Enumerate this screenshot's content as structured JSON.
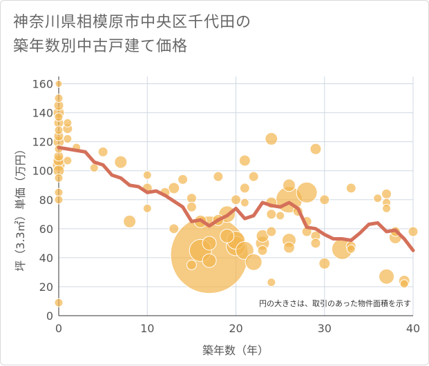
{
  "title_line1": "神奈川県相模原市中央区千代田の",
  "title_line2": "築年数別中古戸建て価格",
  "chart_data": {
    "type": "scatter",
    "xlabel": "築年数（年）",
    "ylabel": "坪（3.3㎡）単価（万円）",
    "xlim": [
      0,
      40
    ],
    "ylim": [
      0,
      165
    ],
    "x_ticks": [
      "0",
      "10",
      "20",
      "30",
      "40"
    ],
    "y_ticks": [
      "0",
      "20",
      "40",
      "60",
      "80",
      "100",
      "120",
      "140",
      "160"
    ],
    "grid": true,
    "annotation": "円の大きさは、取引のあった物件面積を示す",
    "colors": {
      "bubble": "#f2b54f",
      "line": "#d4705a",
      "grid": "#cfd8e3"
    },
    "bubbles": [
      {
        "x": 0,
        "y": 160,
        "s": 5
      },
      {
        "x": 0,
        "y": 150,
        "s": 6
      },
      {
        "x": 0,
        "y": 145,
        "s": 7
      },
      {
        "x": 0,
        "y": 140,
        "s": 8
      },
      {
        "x": 0,
        "y": 137,
        "s": 6
      },
      {
        "x": 0,
        "y": 133,
        "s": 7
      },
      {
        "x": 0,
        "y": 128,
        "s": 6
      },
      {
        "x": 0,
        "y": 124,
        "s": 7
      },
      {
        "x": 0,
        "y": 120,
        "s": 8
      },
      {
        "x": 0,
        "y": 115,
        "s": 6
      },
      {
        "x": 0,
        "y": 110,
        "s": 7
      },
      {
        "x": 0,
        "y": 107,
        "s": 8
      },
      {
        "x": 0,
        "y": 104,
        "s": 9
      },
      {
        "x": 0,
        "y": 100,
        "s": 8
      },
      {
        "x": 0,
        "y": 95,
        "s": 6
      },
      {
        "x": 0,
        "y": 85,
        "s": 6
      },
      {
        "x": 0,
        "y": 80,
        "s": 6
      },
      {
        "x": 0,
        "y": 9,
        "s": 6
      },
      {
        "x": 1,
        "y": 133,
        "s": 6
      },
      {
        "x": 1,
        "y": 129,
        "s": 7
      },
      {
        "x": 1,
        "y": 122,
        "s": 6
      },
      {
        "x": 1,
        "y": 107,
        "s": 6
      },
      {
        "x": 2,
        "y": 116,
        "s": 6
      },
      {
        "x": 4,
        "y": 102,
        "s": 6
      },
      {
        "x": 5,
        "y": 113,
        "s": 7
      },
      {
        "x": 7,
        "y": 106,
        "s": 9
      },
      {
        "x": 8,
        "y": 65,
        "s": 9
      },
      {
        "x": 10,
        "y": 97,
        "s": 6
      },
      {
        "x": 10,
        "y": 88,
        "s": 7
      },
      {
        "x": 10,
        "y": 74,
        "s": 6
      },
      {
        "x": 12,
        "y": 85,
        "s": 7
      },
      {
        "x": 13,
        "y": 88,
        "s": 8
      },
      {
        "x": 13,
        "y": 60,
        "s": 7
      },
      {
        "x": 14,
        "y": 94,
        "s": 7
      },
      {
        "x": 15,
        "y": 81,
        "s": 7
      },
      {
        "x": 15,
        "y": 75,
        "s": 7
      },
      {
        "x": 15,
        "y": 35,
        "s": 7
      },
      {
        "x": 16,
        "y": 65,
        "s": 9
      },
      {
        "x": 16,
        "y": 45,
        "s": 16
      },
      {
        "x": 17,
        "y": 42,
        "s": 56
      },
      {
        "x": 17,
        "y": 50,
        "s": 10
      },
      {
        "x": 17,
        "y": 38,
        "s": 10
      },
      {
        "x": 18,
        "y": 96,
        "s": 7
      },
      {
        "x": 18,
        "y": 66,
        "s": 8
      },
      {
        "x": 19,
        "y": 70,
        "s": 12
      },
      {
        "x": 19,
        "y": 55,
        "s": 10
      },
      {
        "x": 20,
        "y": 80,
        "s": 7
      },
      {
        "x": 20,
        "y": 52,
        "s": 13
      },
      {
        "x": 20,
        "y": 48,
        "s": 14
      },
      {
        "x": 21,
        "y": 107,
        "s": 8
      },
      {
        "x": 21,
        "y": 88,
        "s": 7
      },
      {
        "x": 21,
        "y": 78,
        "s": 6
      },
      {
        "x": 21,
        "y": 45,
        "s": 13
      },
      {
        "x": 22,
        "y": 96,
        "s": 7
      },
      {
        "x": 22,
        "y": 37,
        "s": 12
      },
      {
        "x": 23,
        "y": 55,
        "s": 9
      },
      {
        "x": 23,
        "y": 50,
        "s": 10
      },
      {
        "x": 23,
        "y": 45,
        "s": 7
      },
      {
        "x": 24,
        "y": 122,
        "s": 9
      },
      {
        "x": 24,
        "y": 78,
        "s": 8
      },
      {
        "x": 24,
        "y": 70,
        "s": 7
      },
      {
        "x": 24,
        "y": 58,
        "s": 7
      },
      {
        "x": 24,
        "y": 23,
        "s": 6
      },
      {
        "x": 25,
        "y": 69,
        "s": 6
      },
      {
        "x": 26,
        "y": 90,
        "s": 9
      },
      {
        "x": 26,
        "y": 80,
        "s": 19
      },
      {
        "x": 26,
        "y": 52,
        "s": 10
      },
      {
        "x": 26,
        "y": 47,
        "s": 8
      },
      {
        "x": 27,
        "y": 72,
        "s": 7
      },
      {
        "x": 28,
        "y": 85,
        "s": 15
      },
      {
        "x": 28,
        "y": 65,
        "s": 7
      },
      {
        "x": 28,
        "y": 58,
        "s": 7
      },
      {
        "x": 29,
        "y": 115,
        "s": 8
      },
      {
        "x": 29,
        "y": 55,
        "s": 7
      },
      {
        "x": 29,
        "y": 50,
        "s": 7
      },
      {
        "x": 30,
        "y": 80,
        "s": 7
      },
      {
        "x": 30,
        "y": 36,
        "s": 8
      },
      {
        "x": 32,
        "y": 46,
        "s": 15
      },
      {
        "x": 33,
        "y": 88,
        "s": 7
      },
      {
        "x": 33,
        "y": 48,
        "s": 7
      },
      {
        "x": 33,
        "y": 46,
        "s": 6
      },
      {
        "x": 36,
        "y": 81,
        "s": 6
      },
      {
        "x": 37,
        "y": 84,
        "s": 7
      },
      {
        "x": 37,
        "y": 78,
        "s": 6
      },
      {
        "x": 37,
        "y": 74,
        "s": 6
      },
      {
        "x": 37,
        "y": 27,
        "s": 11
      },
      {
        "x": 38,
        "y": 58,
        "s": 7
      },
      {
        "x": 38,
        "y": 54,
        "s": 9
      },
      {
        "x": 39,
        "y": 24,
        "s": 8
      },
      {
        "x": 39,
        "y": 22,
        "s": 6
      },
      {
        "x": 40,
        "y": 58,
        "s": 7
      }
    ],
    "trend": {
      "x": [
        0,
        1,
        2,
        3,
        4,
        5,
        6,
        7,
        8,
        9,
        10,
        11,
        12,
        13,
        14,
        15,
        16,
        17,
        18,
        19,
        20,
        21,
        22,
        23,
        24,
        25,
        26,
        27,
        28,
        29,
        30,
        31,
        32,
        33,
        34,
        35,
        36,
        37,
        38,
        39,
        40
      ],
      "y": [
        116,
        115,
        114,
        113,
        106,
        104,
        97,
        95,
        90,
        89,
        85,
        86,
        83,
        79,
        75,
        65,
        66,
        62,
        66,
        69,
        74,
        67,
        69,
        78,
        76,
        75,
        78,
        74,
        61,
        60,
        56,
        53,
        53,
        52,
        57,
        63,
        64,
        58,
        59,
        53,
        45
      ]
    }
  }
}
